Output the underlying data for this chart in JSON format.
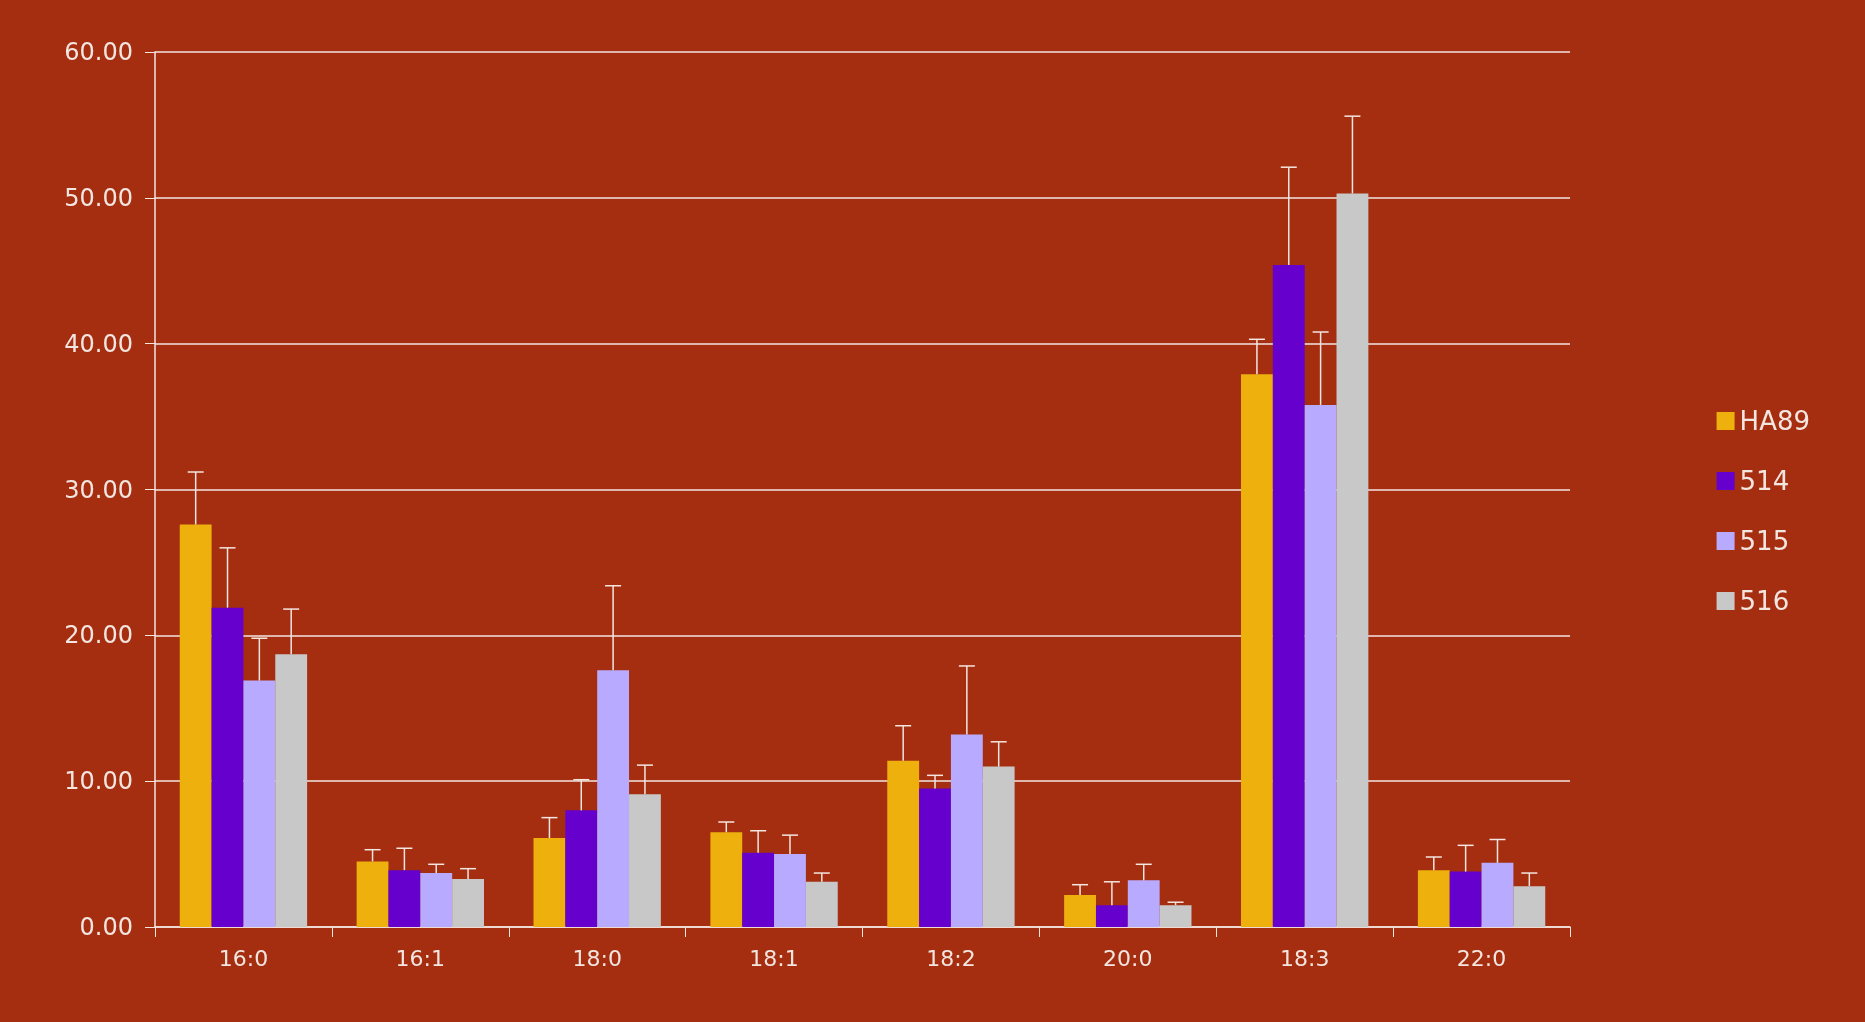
{
  "chart_data": {
    "type": "bar",
    "categories": [
      "16:0",
      "16:1",
      "18:0",
      "18:1",
      "18:2",
      "20:0",
      "18:3",
      "22:0"
    ],
    "series": [
      {
        "name": "HA89",
        "color": "#eeb00c",
        "values": [
          27.6,
          4.5,
          6.1,
          6.5,
          11.4,
          2.2,
          37.9,
          3.9
        ],
        "errors": [
          [
            27.6,
            31.2
          ],
          [
            4.5,
            5.3
          ],
          [
            6.1,
            7.5
          ],
          [
            6.5,
            7.2
          ],
          [
            11.4,
            13.8
          ],
          [
            2.2,
            2.9
          ],
          [
            37.9,
            40.3
          ],
          [
            3.9,
            4.8
          ]
        ]
      },
      {
        "name": "514",
        "color": "#6600cc",
        "values": [
          21.9,
          3.9,
          8.0,
          5.1,
          9.5,
          1.5,
          45.4,
          3.8
        ],
        "errors": [
          [
            21.9,
            26.0
          ],
          [
            3.9,
            5.4
          ],
          [
            8.0,
            10.1
          ],
          [
            5.1,
            6.6
          ],
          [
            9.5,
            10.4
          ],
          [
            1.5,
            3.1
          ],
          [
            45.4,
            52.1
          ],
          [
            3.8,
            5.6
          ]
        ]
      },
      {
        "name": "515",
        "color": "#b8aaff",
        "values": [
          16.9,
          3.7,
          17.6,
          5.0,
          13.2,
          3.2,
          35.8,
          4.4
        ],
        "errors": [
          [
            16.9,
            19.8
          ],
          [
            3.7,
            4.3
          ],
          [
            17.6,
            23.4
          ],
          [
            5.0,
            6.3
          ],
          [
            13.2,
            17.9
          ],
          [
            3.2,
            4.3
          ],
          [
            35.8,
            40.8
          ],
          [
            4.4,
            6.0
          ]
        ]
      },
      {
        "name": "516",
        "color": "#c8c8c8",
        "values": [
          18.7,
          3.3,
          9.1,
          3.1,
          11.0,
          1.5,
          50.3,
          2.8
        ],
        "errors": [
          [
            18.7,
            21.8
          ],
          [
            3.3,
            4.0
          ],
          [
            9.1,
            11.1
          ],
          [
            3.1,
            3.7
          ],
          [
            11.0,
            12.7
          ],
          [
            1.5,
            1.7
          ],
          [
            50.3,
            55.6
          ],
          [
            2.8,
            3.7
          ]
        ]
      }
    ],
    "ylim": [
      0,
      60
    ],
    "yticks": [
      {
        "value": 0,
        "label": "0.00"
      },
      {
        "value": 10,
        "label": "10.00"
      },
      {
        "value": 20,
        "label": "20.00"
      },
      {
        "value": 30,
        "label": "30.00"
      },
      {
        "value": 40,
        "label": "40.00"
      },
      {
        "value": 50,
        "label": "50.00"
      },
      {
        "value": 60,
        "label": "60.00"
      }
    ],
    "grid": "y",
    "legend": "right"
  }
}
